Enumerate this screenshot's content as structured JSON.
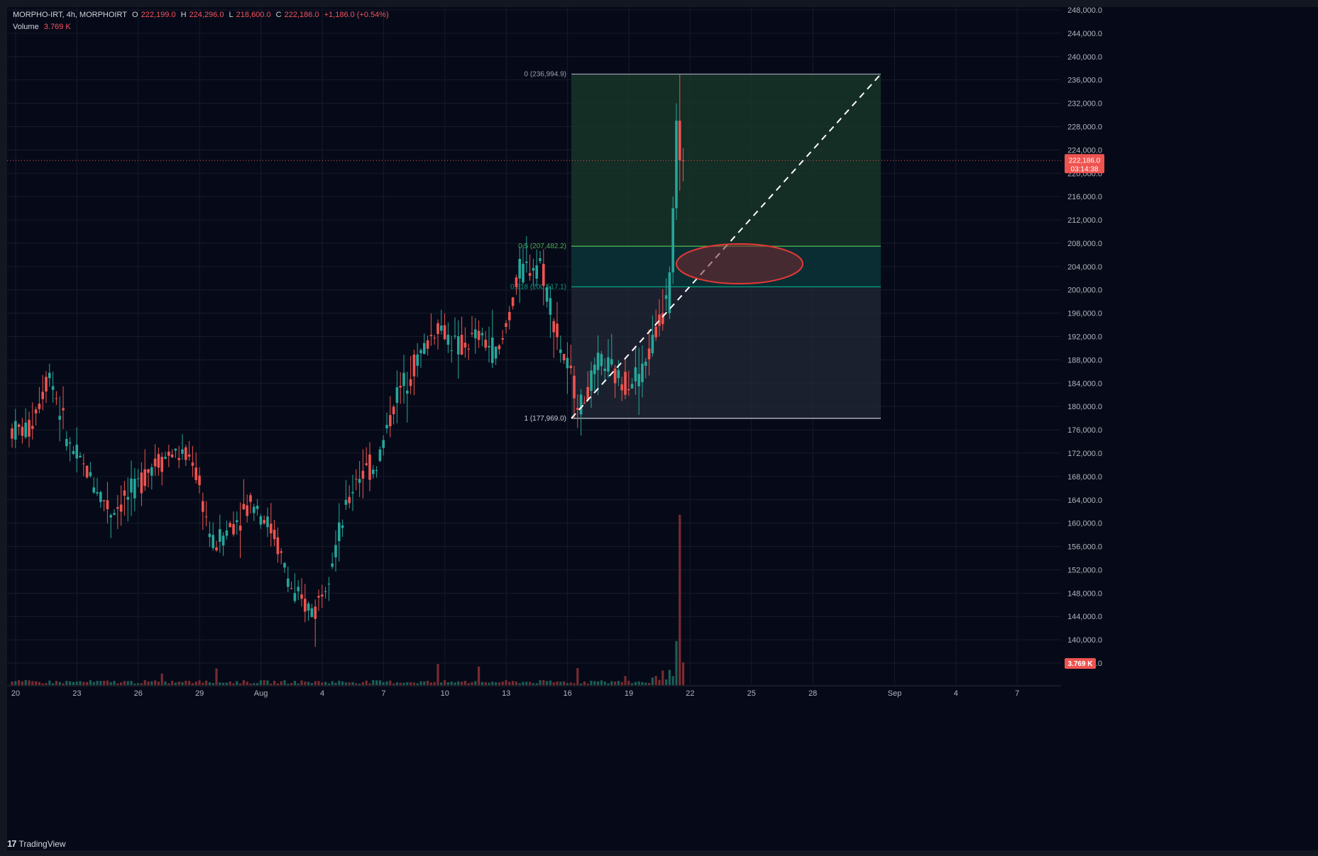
{
  "header": {
    "symbol": "MORPHO-IRT, 4h, MORPHOIRT",
    "o_label": "O",
    "o_value": "222,199.0",
    "h_label": "H",
    "h_value": "224,296.0",
    "l_label": "L",
    "l_value": "218,600.0",
    "c_label": "C",
    "c_value": "222,186.0",
    "change": "+1,186.0 (+0.54%)",
    "volume_label": "Volume",
    "volume_value": "3.769 K"
  },
  "price_axis": {
    "ticks": [
      248000,
      244000,
      240000,
      236000,
      232000,
      228000,
      224000,
      220000,
      216000,
      212000,
      208000,
      204000,
      200000,
      196000,
      192000,
      188000,
      184000,
      180000,
      176000,
      172000,
      168000,
      164000,
      160000,
      156000,
      152000,
      148000,
      144000,
      140000,
      136000
    ],
    "current_price_label": "222,186.0",
    "countdown_label": "03:14:38",
    "volume_badge": "3.769 K"
  },
  "time_axis": {
    "labels": [
      "20",
      "23",
      "26",
      "29",
      "Aug",
      "4",
      "7",
      "10",
      "13",
      "16",
      "19",
      "22",
      "25",
      "28",
      "Sep",
      "4",
      "7"
    ]
  },
  "fib": {
    "levels": [
      {
        "label": "0 (236,994.9)",
        "price": 236994.9
      },
      {
        "label": "0.5 (207,482.2)",
        "price": 207482.2
      },
      {
        "label": "0.618 (200,517.1)",
        "price": 200517.1
      },
      {
        "label": "1 (177,969.0)",
        "price": 177969.0
      }
    ]
  },
  "branding": {
    "logo_text": "TradingView",
    "logo_mark": "17"
  },
  "colors": {
    "up": "#26a69a",
    "down": "#ef5350",
    "background": "#060a18",
    "fib_green": "#4caf50",
    "fib_teal": "#089981",
    "ellipse": "#e53935"
  },
  "chart_data": {
    "type": "candlestick",
    "title": "MORPHO-IRT, 4h, MORPHOIRT",
    "interval": "4h",
    "ylim": [
      135000,
      249000
    ],
    "xlim_label_range": [
      "Jul 20",
      "Sep 7"
    ],
    "last_close": 222186.0,
    "daily_path": [
      {
        "day": "Jul 20",
        "close": 176000
      },
      {
        "day": "Jul 21",
        "close": 186000
      },
      {
        "day": "Jul 22",
        "close": 173000
      },
      {
        "day": "Jul 23",
        "close": 168000
      },
      {
        "day": "Jul 24",
        "close": 162000
      },
      {
        "day": "Jul 25",
        "close": 165000
      },
      {
        "day": "Jul 26",
        "close": 170000
      },
      {
        "day": "Jul 27",
        "close": 172000
      },
      {
        "day": "Jul 28",
        "close": 171000
      },
      {
        "day": "Jul 29",
        "close": 156000
      },
      {
        "day": "Jul 30",
        "close": 160000
      },
      {
        "day": "Jul 31",
        "close": 164000
      },
      {
        "day": "Aug 1",
        "close": 158000
      },
      {
        "day": "Aug 2",
        "close": 147000
      },
      {
        "day": "Aug 3",
        "close": 145000
      },
      {
        "day": "Aug 4",
        "close": 156000
      },
      {
        "day": "Aug 5",
        "close": 168000
      },
      {
        "day": "Aug 6",
        "close": 170000
      },
      {
        "day": "Aug 7",
        "close": 182000
      },
      {
        "day": "Aug 8",
        "close": 188000
      },
      {
        "day": "Aug 9",
        "close": 194000
      },
      {
        "day": "Aug 10",
        "close": 190000
      },
      {
        "day": "Aug 11",
        "close": 192000
      },
      {
        "day": "Aug 12",
        "close": 189000
      },
      {
        "day": "Aug 13",
        "close": 203000
      },
      {
        "day": "Aug 14",
        "close": 205000
      },
      {
        "day": "Aug 15",
        "close": 190000
      },
      {
        "day": "Aug 16",
        "close": 180000
      },
      {
        "day": "Aug 17",
        "close": 188000
      },
      {
        "day": "Aug 18",
        "close": 184000
      },
      {
        "day": "Aug 19",
        "close": 186000
      },
      {
        "day": "Aug 20",
        "close": 196000
      },
      {
        "day": "Aug 21",
        "close": 222186
      }
    ],
    "volume_spike": {
      "day": "Aug 21",
      "value_label": "3.769 K"
    }
  }
}
